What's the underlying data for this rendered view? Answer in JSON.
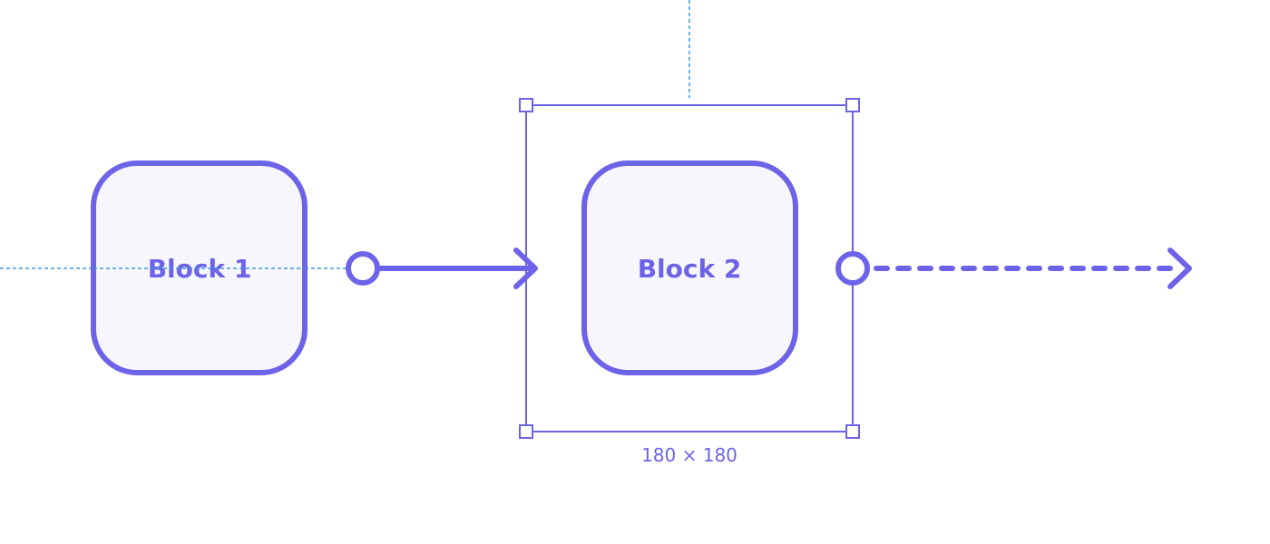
{
  "diagram": {
    "blocks": [
      {
        "id": "block-1",
        "label": "Block 1"
      },
      {
        "id": "block-2",
        "label": "Block 2"
      }
    ],
    "connectors": [
      {
        "from": "block-1",
        "to": "block-2",
        "style": "solid"
      },
      {
        "from": "block-2",
        "to": "",
        "style": "dashed"
      }
    ],
    "selection": {
      "target": "block-2",
      "size_label": "180 × 180"
    }
  },
  "colors": {
    "accent": "#6c63e8",
    "block_fill": "#f7f6fd",
    "guide": "#3a9ad9",
    "background": "#ffffff"
  }
}
